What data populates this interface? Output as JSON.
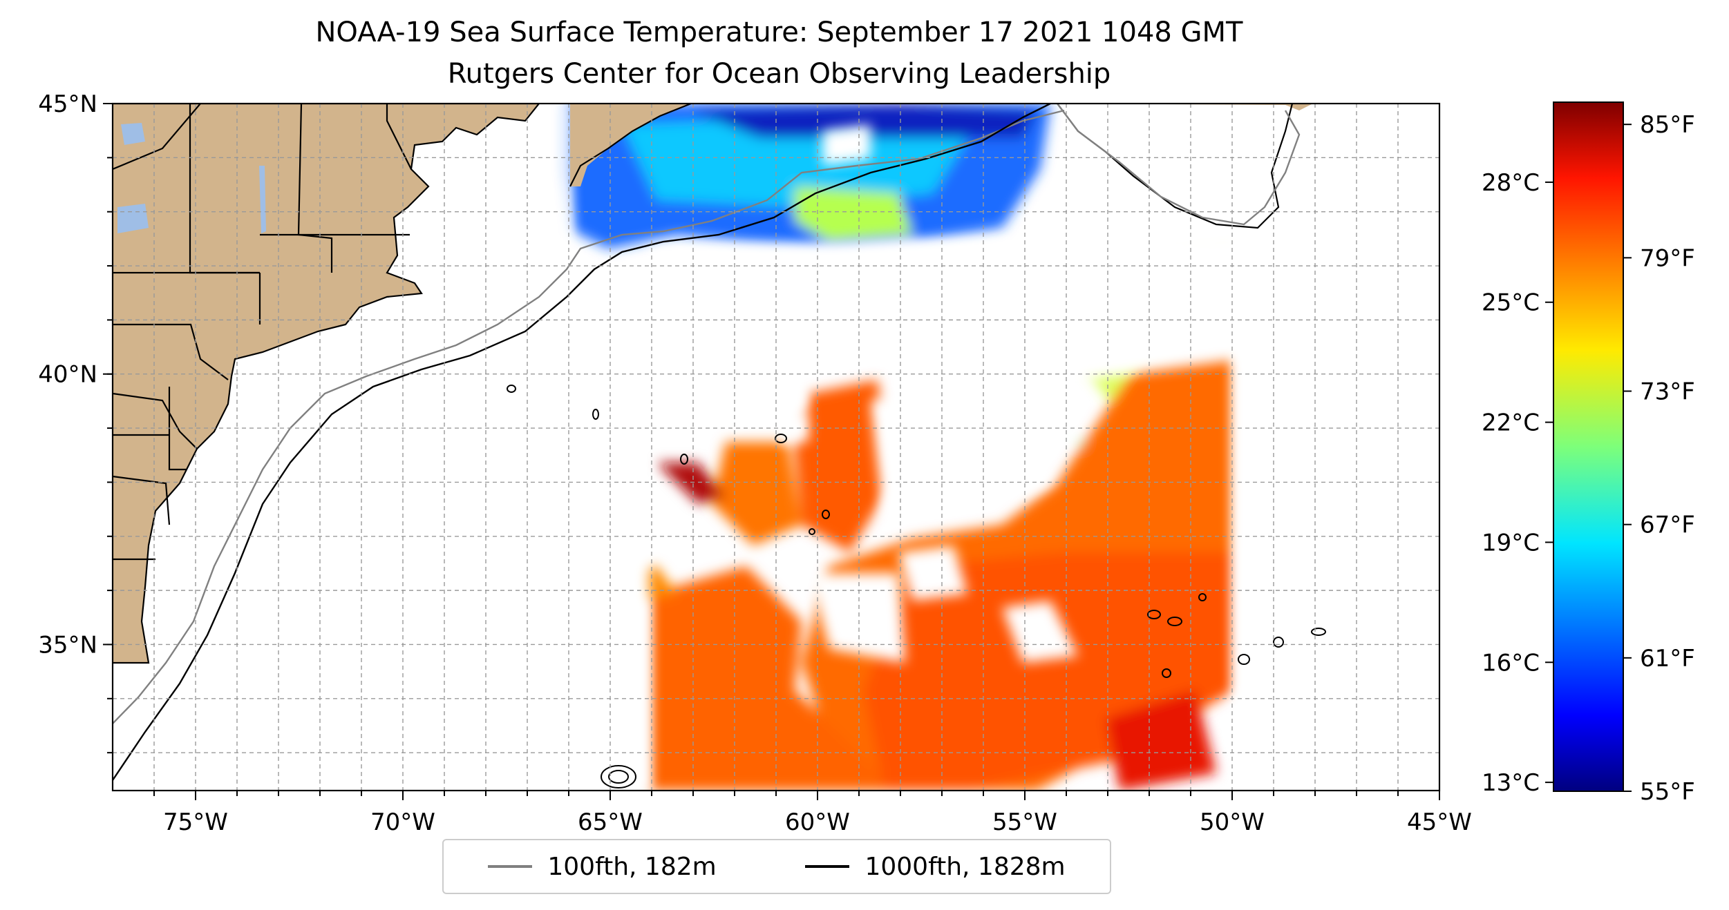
{
  "title": "NOAA-19 Sea Surface Temperature: September 17 2021 1048 GMT",
  "subtitle": "Rutgers Center for Ocean Observing Leadership",
  "map": {
    "lon_range": [
      -77,
      -45
    ],
    "lat_range": [
      32.3,
      45
    ],
    "lon_ticks": [
      "75°W",
      "70°W",
      "65°W",
      "60°W",
      "55°W",
      "50°W",
      "45°W"
    ],
    "lat_ticks": [
      "45°N",
      "40°N",
      "35°N"
    ],
    "land_color": "#d2b48c",
    "lake_color": "#9fbee6",
    "grid": true
  },
  "legend": {
    "items": [
      {
        "label": "100fth, 182m",
        "color": "#808080"
      },
      {
        "label": "1000fth, 1828m",
        "color": "#000000"
      }
    ]
  },
  "colorbar": {
    "colormap": "jet",
    "celsius_ticks": [
      "28°C",
      "25°C",
      "22°C",
      "19°C",
      "16°C",
      "13°C"
    ],
    "fahrenheit_ticks": [
      "85°F",
      "79°F",
      "73°F",
      "67°F",
      "61°F",
      "55°F"
    ],
    "range_f": [
      55,
      86
    ]
  }
}
